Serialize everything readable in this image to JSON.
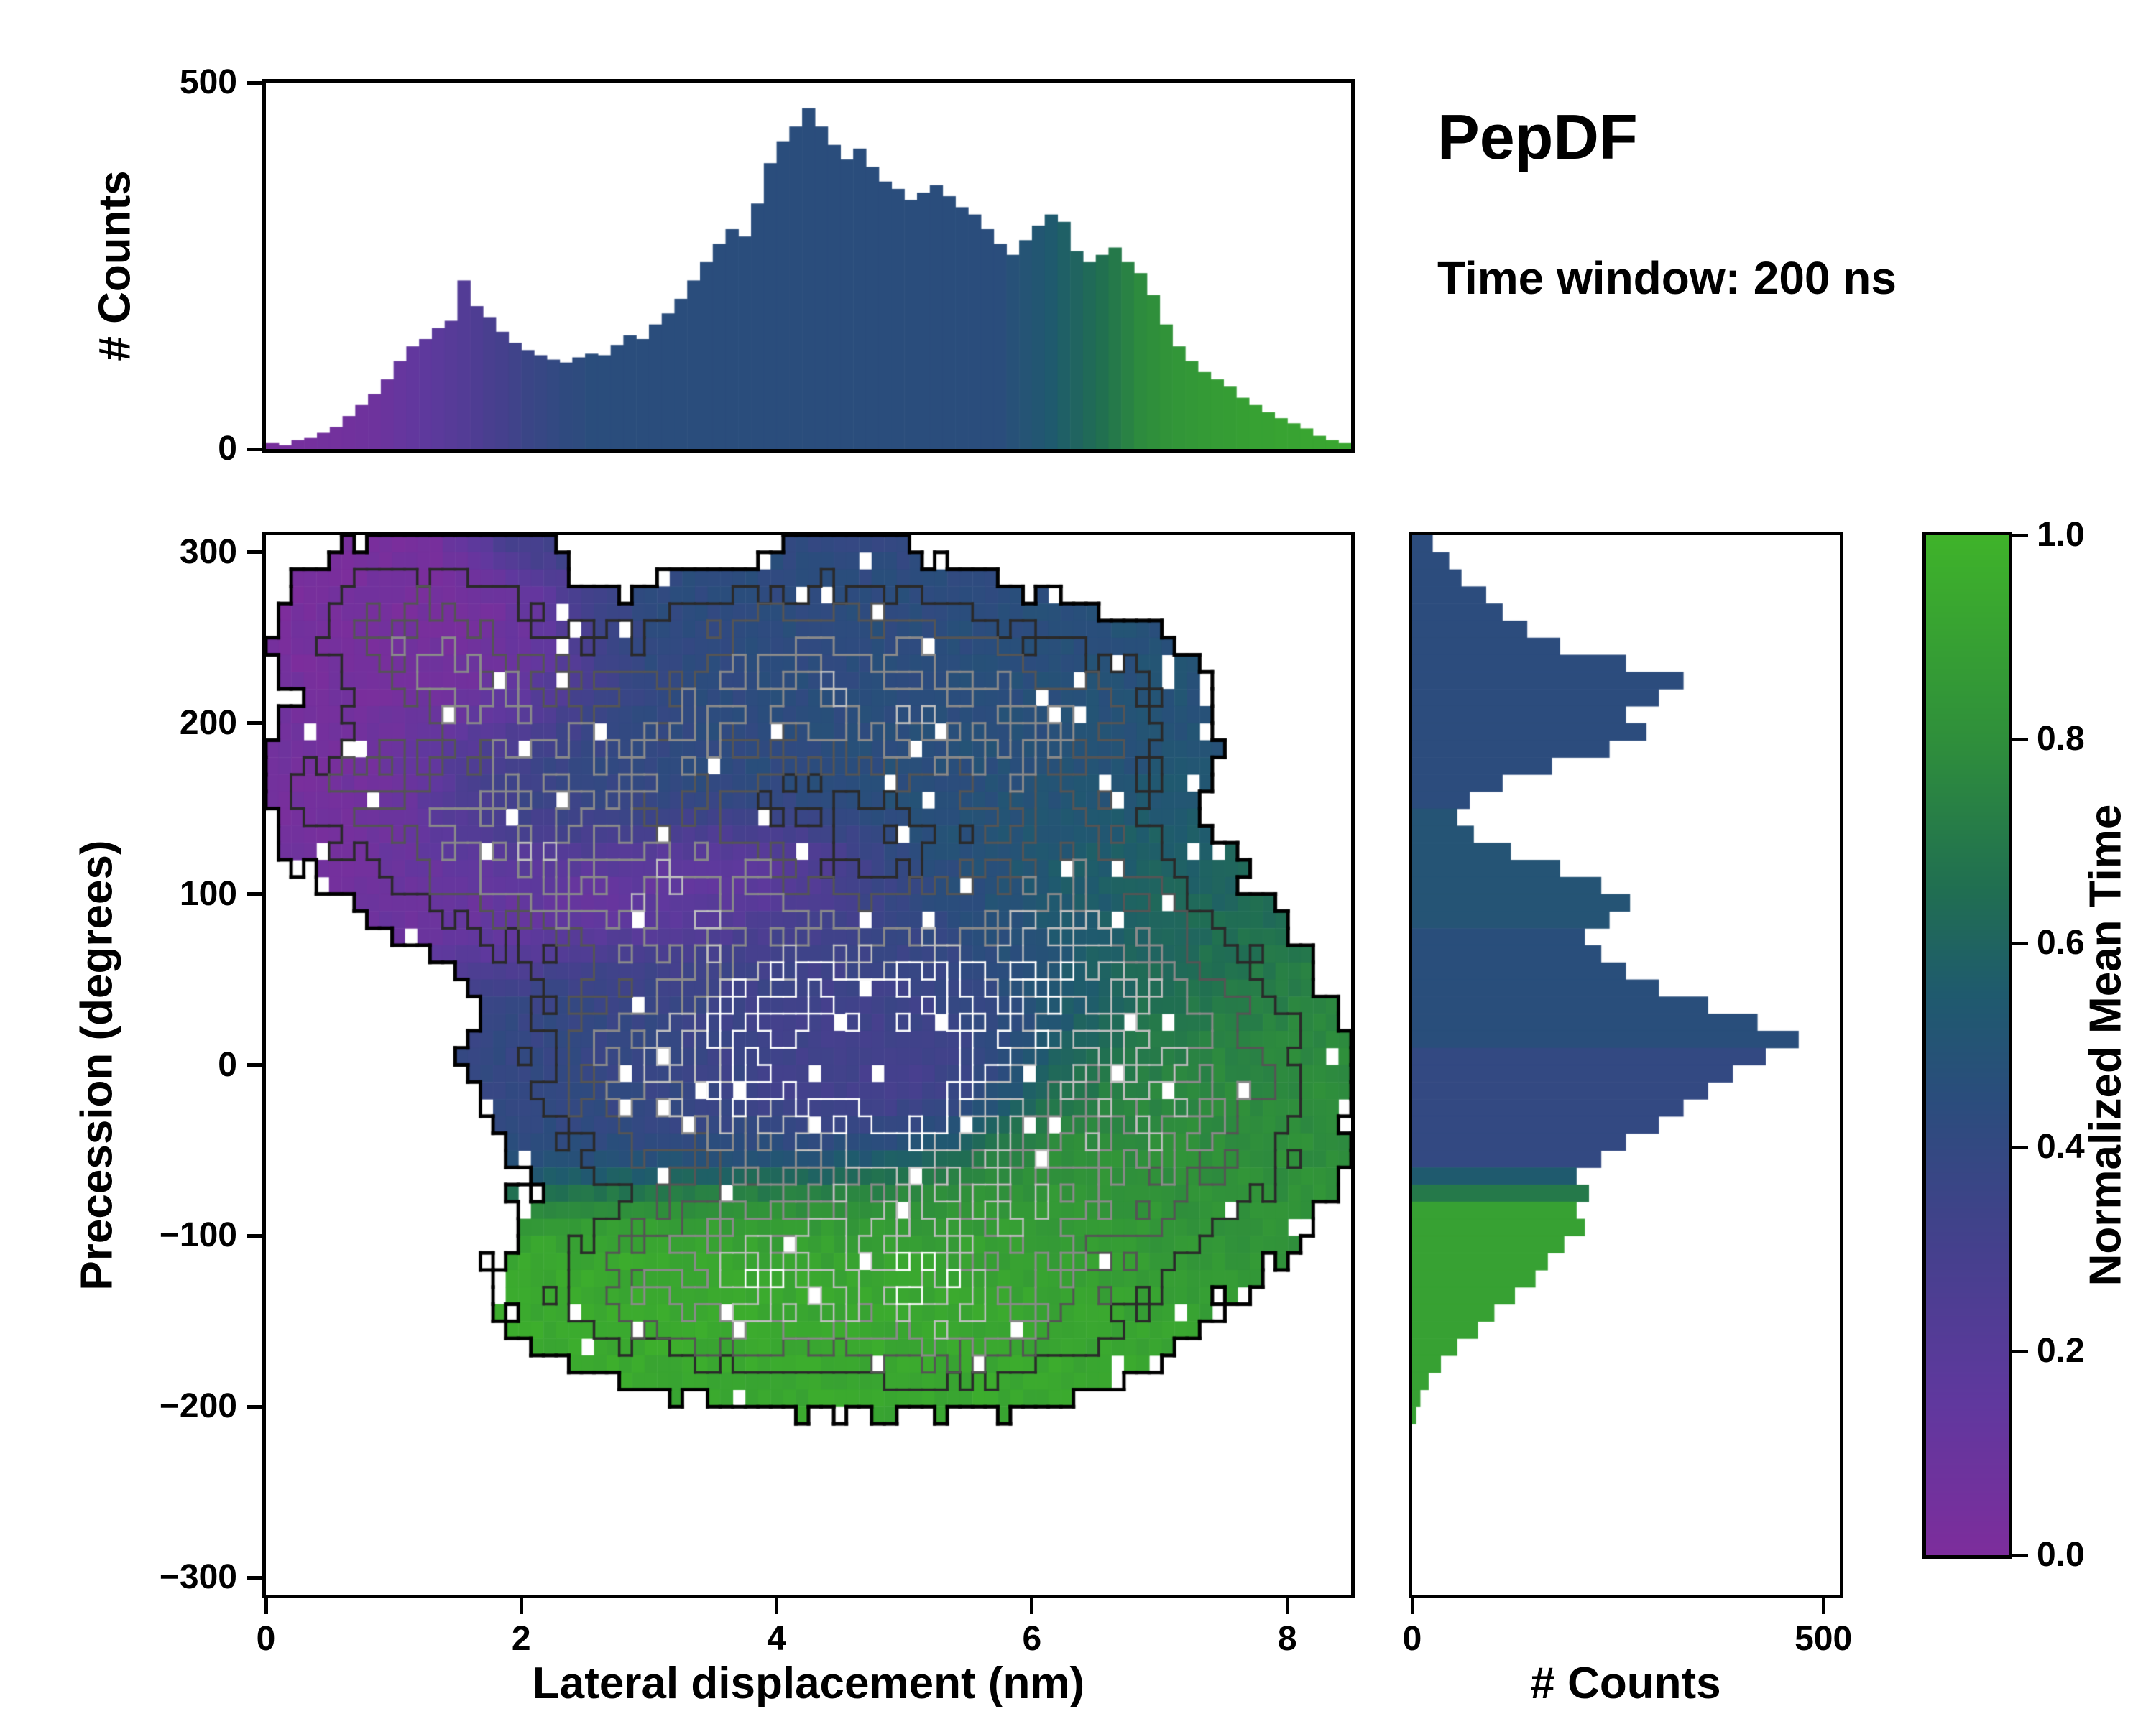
{
  "figure": {
    "title": "PepDF",
    "subtitle": "Time window: 200 ns"
  },
  "colorbar": {
    "label": "Normalized Mean Time",
    "ticks": [
      "1.0",
      "0.8",
      "0.6",
      "0.4",
      "0.2",
      "0.0"
    ],
    "tick_values": [
      1.0,
      0.8,
      0.6,
      0.4,
      0.2,
      0.0
    ],
    "range": [
      0.0,
      1.0
    ],
    "stops": [
      [
        0.0,
        "#7d2d9c"
      ],
      [
        0.15,
        "#60389e"
      ],
      [
        0.3,
        "#45408d"
      ],
      [
        0.45,
        "#2a4d7c"
      ],
      [
        0.55,
        "#1f5a6e"
      ],
      [
        0.65,
        "#206e52"
      ],
      [
        0.8,
        "#2f8f3b"
      ],
      [
        1.0,
        "#3fb32a"
      ]
    ]
  },
  "chart_data": [
    {
      "type": "bar",
      "name": "top-marginal-histogram",
      "ylabel": "# Counts",
      "xlim": [
        0,
        8.5
      ],
      "ylim": [
        0,
        500
      ],
      "yticks": [
        "0",
        "500"
      ],
      "ytick_values": [
        0,
        500
      ],
      "bin_start": 0,
      "bin_width": 0.1,
      "counts": [
        8,
        5,
        12,
        15,
        22,
        30,
        45,
        60,
        75,
        95,
        120,
        140,
        150,
        165,
        175,
        230,
        195,
        180,
        160,
        145,
        135,
        128,
        122,
        118,
        125,
        130,
        128,
        142,
        155,
        150,
        170,
        185,
        205,
        230,
        255,
        280,
        300,
        290,
        335,
        390,
        420,
        440,
        465,
        440,
        415,
        395,
        410,
        385,
        365,
        355,
        340,
        350,
        360,
        345,
        330,
        320,
        300,
        280,
        265,
        285,
        305,
        320,
        310,
        270,
        255,
        265,
        275,
        255,
        240,
        210,
        170,
        140,
        120,
        105,
        95,
        85,
        70,
        60,
        50,
        42,
        35,
        28,
        18,
        12,
        8
      ],
      "color_time": [
        0.03,
        0.03,
        0.04,
        0.04,
        0.05,
        0.05,
        0.06,
        0.07,
        0.08,
        0.1,
        0.12,
        0.14,
        0.16,
        0.18,
        0.2,
        0.22,
        0.25,
        0.28,
        0.3,
        0.33,
        0.36,
        0.38,
        0.4,
        0.42,
        0.43,
        0.45,
        0.45,
        0.45,
        0.45,
        0.45,
        0.45,
        0.45,
        0.45,
        0.45,
        0.45,
        0.45,
        0.45,
        0.45,
        0.45,
        0.45,
        0.45,
        0.45,
        0.45,
        0.45,
        0.45,
        0.45,
        0.45,
        0.45,
        0.45,
        0.45,
        0.45,
        0.45,
        0.45,
        0.45,
        0.45,
        0.45,
        0.45,
        0.45,
        0.48,
        0.5,
        0.52,
        0.55,
        0.58,
        0.6,
        0.63,
        0.66,
        0.7,
        0.74,
        0.78,
        0.8,
        0.82,
        0.84,
        0.85,
        0.86,
        0.87,
        0.88,
        0.89,
        0.9,
        0.9,
        0.91,
        0.91,
        0.92,
        0.92,
        0.93,
        0.93
      ]
    },
    {
      "type": "heatmap",
      "name": "main-2d-histogram",
      "xlabel": "Lateral displacement (nm)",
      "ylabel": "Precession (degrees)",
      "xlim": [
        0,
        8.5
      ],
      "ylim": [
        -310,
        310
      ],
      "xticks": [
        "0",
        "2",
        "4",
        "6",
        "8"
      ],
      "xtick_values": [
        0,
        2,
        4,
        6,
        8
      ],
      "yticks": [
        "300",
        "200",
        "100",
        "0",
        "−100",
        "−200",
        "−300"
      ],
      "ytick_values": [
        300,
        200,
        100,
        0,
        -100,
        -200,
        -300
      ],
      "grid": {
        "nx": 86,
        "ny": 62
      },
      "fill_threshold": 0.18,
      "contour_levels": [
        {
          "v": 0.17,
          "color": "#000000",
          "lw": 5
        },
        {
          "v": 0.55,
          "color": "#2a2a2a",
          "lw": 3.5
        },
        {
          "v": 1.0,
          "color": "#555555",
          "lw": 3
        },
        {
          "v": 1.5,
          "color": "#8a8a8a",
          "lw": 3
        },
        {
          "v": 2.1,
          "color": "#c0c0c0",
          "lw": 2.5
        },
        {
          "v": 2.7,
          "color": "#ffffff",
          "lw": 2.5
        }
      ],
      "blobs": [
        [
          1.1,
          255,
          0.55,
          30,
          1.0,
          0.03
        ],
        [
          1.7,
          220,
          0.55,
          28,
          0.9,
          0.06
        ],
        [
          0.85,
          160,
          0.5,
          28,
          0.95,
          0.05
        ],
        [
          1.6,
          120,
          0.45,
          22,
          0.6,
          0.08
        ],
        [
          2.7,
          100,
          0.85,
          24,
          1.1,
          0.05
        ],
        [
          3.6,
          105,
          0.5,
          20,
          0.6,
          0.07
        ],
        [
          4.2,
          235,
          0.95,
          32,
          1.2,
          0.43
        ],
        [
          5.2,
          205,
          0.85,
          35,
          1.05,
          0.46
        ],
        [
          3.3,
          175,
          0.6,
          35,
          0.85,
          0.42
        ],
        [
          2.3,
          170,
          0.55,
          32,
          0.85,
          0.4
        ],
        [
          2.0,
          148,
          0.5,
          28,
          0.7,
          0.38
        ],
        [
          5.9,
          165,
          0.6,
          38,
          0.7,
          0.48
        ],
        [
          6.6,
          205,
          0.5,
          30,
          0.5,
          0.5
        ],
        [
          3.9,
          25,
          1.05,
          50,
          1.5,
          0.38
        ],
        [
          4.55,
          5,
          0.8,
          42,
          1.9,
          0.27
        ],
        [
          5.0,
          -15,
          0.45,
          22,
          1.0,
          0.13
        ],
        [
          5.4,
          40,
          0.6,
          35,
          0.9,
          0.33
        ],
        [
          2.9,
          -10,
          0.6,
          35,
          0.7,
          0.42
        ],
        [
          6.25,
          60,
          0.75,
          38,
          1.35,
          0.55
        ],
        [
          6.9,
          10,
          0.6,
          45,
          0.9,
          0.72
        ],
        [
          4.6,
          -120,
          1.15,
          38,
          1.5,
          0.93
        ],
        [
          3.5,
          -130,
          0.8,
          28,
          1.0,
          0.96
        ],
        [
          5.9,
          -70,
          0.95,
          42,
          1.2,
          0.85
        ],
        [
          7.3,
          -20,
          0.65,
          48,
          0.85,
          0.8
        ],
        [
          6.6,
          120,
          0.45,
          28,
          0.5,
          0.6
        ],
        [
          5.6,
          -150,
          0.7,
          25,
          0.8,
          0.95
        ],
        [
          2.0,
          300,
          0.3,
          15,
          0.2,
          0.4
        ],
        [
          4.6,
          302,
          0.3,
          12,
          0.2,
          0.4
        ]
      ]
    },
    {
      "type": "bar",
      "name": "right-marginal-histogram",
      "xlabel": "# Counts",
      "xlim": [
        0,
        520
      ],
      "ylim": [
        -310,
        310
      ],
      "xticks": [
        "0",
        "500"
      ],
      "xtick_values": [
        0,
        500
      ],
      "bin_start": 310,
      "bin_width": -10,
      "counts": [
        25,
        45,
        60,
        90,
        110,
        140,
        180,
        260,
        330,
        300,
        260,
        285,
        240,
        170,
        110,
        70,
        55,
        75,
        120,
        180,
        230,
        265,
        240,
        210,
        230,
        260,
        300,
        360,
        420,
        470,
        430,
        390,
        360,
        330,
        300,
        260,
        230,
        200,
        215,
        200,
        210,
        185,
        165,
        150,
        125,
        100,
        80,
        55,
        35,
        20,
        10,
        5,
        0,
        0,
        0,
        0,
        0,
        0,
        0,
        0,
        0,
        0
      ],
      "color_time": [
        0.44,
        0.44,
        0.44,
        0.44,
        0.44,
        0.44,
        0.44,
        0.44,
        0.44,
        0.44,
        0.44,
        0.44,
        0.44,
        0.44,
        0.44,
        0.44,
        0.5,
        0.5,
        0.5,
        0.5,
        0.5,
        0.5,
        0.5,
        0.46,
        0.46,
        0.46,
        0.46,
        0.46,
        0.46,
        0.46,
        0.4,
        0.4,
        0.4,
        0.4,
        0.4,
        0.4,
        0.4,
        0.55,
        0.7,
        0.9,
        0.9,
        0.9,
        0.9,
        0.9,
        0.9,
        0.9,
        0.9,
        0.9,
        0.9,
        0.9,
        0.9,
        0.9,
        0.9,
        0.9,
        0.9,
        0.9,
        0.9,
        0.9,
        0.9,
        0.9,
        0.9,
        0.9
      ]
    }
  ]
}
